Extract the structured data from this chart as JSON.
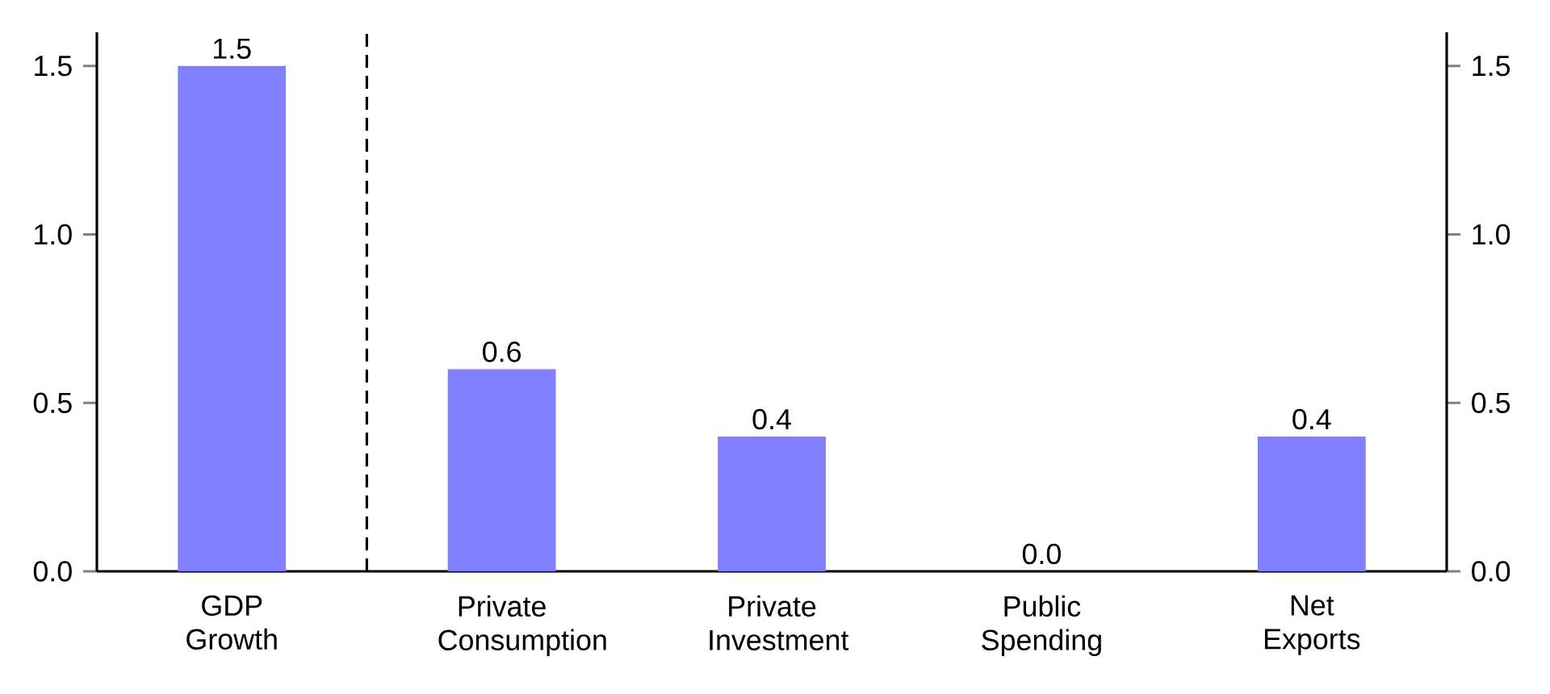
{
  "chart_data": {
    "type": "bar",
    "categories": [
      "GDP Growth",
      "Private Consumption",
      "Private Investment",
      "Public Spending",
      "Net Exports"
    ],
    "values": [
      1.5,
      0.6,
      0.4,
      0.0,
      0.4
    ],
    "value_labels": [
      "1.5",
      "0.6",
      "0.4",
      "0.0",
      "0.4"
    ],
    "color": "#8080ff",
    "ylim": [
      0,
      1.6
    ],
    "yticks": [
      {
        "value": 0,
        "label": "0.0"
      },
      {
        "value": 0.5,
        "label": "0.5"
      },
      {
        "value": 1,
        "label": "1.0"
      },
      {
        "value": 1.5,
        "label": "1.5"
      }
    ],
    "y2lim": [
      0,
      1.6
    ],
    "y2ticks": [
      {
        "value": 0,
        "label": "0.0"
      },
      {
        "value": 0.5,
        "label": "0.5"
      },
      {
        "value": 1,
        "label": "1.0"
      },
      {
        "value": 1.5,
        "label": "1.5"
      }
    ],
    "grid": false
  }
}
